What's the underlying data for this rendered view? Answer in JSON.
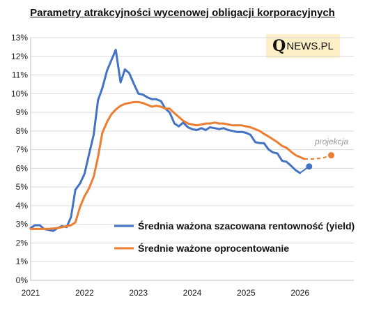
{
  "chart_data": {
    "type": "line",
    "title": "Parametry atrakcyjności wycenowej obligacji korporacyjnych",
    "xlabel": "",
    "ylabel": "",
    "xlim": [
      2021.0,
      2027.0
    ],
    "ylim": [
      0,
      13
    ],
    "y_ticks": [
      "0%",
      "1%",
      "2%",
      "3%",
      "4%",
      "5%",
      "6%",
      "7%",
      "8%",
      "9%",
      "10%",
      "11%",
      "12%",
      "13%"
    ],
    "x_ticks": [
      {
        "value": 2021,
        "label": "2021"
      },
      {
        "value": 2022,
        "label": "2022"
      },
      {
        "value": 2023,
        "label": "2023"
      },
      {
        "value": 2024,
        "label": "2024"
      },
      {
        "value": 2025,
        "label": "2025"
      },
      {
        "value": 2026,
        "label": "2026"
      }
    ],
    "grid": true,
    "legend_position": "lower-right",
    "series": [
      {
        "name": "Średnia ważona szacowana rentowność (yield)",
        "color": "#4472C4",
        "points": [
          [
            2021.0,
            2.8
          ],
          [
            2021.08,
            2.95
          ],
          [
            2021.17,
            2.95
          ],
          [
            2021.25,
            2.75
          ],
          [
            2021.33,
            2.7
          ],
          [
            2021.42,
            2.65
          ],
          [
            2021.5,
            2.8
          ],
          [
            2021.58,
            2.9
          ],
          [
            2021.67,
            2.85
          ],
          [
            2021.75,
            3.4
          ],
          [
            2021.83,
            4.85
          ],
          [
            2021.92,
            5.2
          ],
          [
            2022.0,
            5.7
          ],
          [
            2022.08,
            6.7
          ],
          [
            2022.17,
            7.8
          ],
          [
            2022.25,
            9.65
          ],
          [
            2022.33,
            10.3
          ],
          [
            2022.42,
            11.25
          ],
          [
            2022.5,
            11.8
          ],
          [
            2022.58,
            12.35
          ],
          [
            2022.67,
            10.6
          ],
          [
            2022.75,
            11.3
          ],
          [
            2022.83,
            11.1
          ],
          [
            2022.92,
            10.5
          ],
          [
            2023.0,
            10.0
          ],
          [
            2023.08,
            9.95
          ],
          [
            2023.17,
            9.8
          ],
          [
            2023.25,
            9.7
          ],
          [
            2023.33,
            9.7
          ],
          [
            2023.42,
            9.6
          ],
          [
            2023.5,
            9.2
          ],
          [
            2023.58,
            9.0
          ],
          [
            2023.67,
            8.4
          ],
          [
            2023.75,
            8.25
          ],
          [
            2023.83,
            8.45
          ],
          [
            2023.92,
            8.2
          ],
          [
            2024.0,
            8.1
          ],
          [
            2024.08,
            8.05
          ],
          [
            2024.17,
            8.15
          ],
          [
            2024.25,
            8.05
          ],
          [
            2024.33,
            8.2
          ],
          [
            2024.42,
            8.15
          ],
          [
            2024.5,
            8.1
          ],
          [
            2024.58,
            8.15
          ],
          [
            2024.67,
            8.05
          ],
          [
            2024.75,
            8.0
          ],
          [
            2024.83,
            7.95
          ],
          [
            2024.92,
            7.95
          ],
          [
            2025.0,
            7.9
          ],
          [
            2025.08,
            7.8
          ],
          [
            2025.17,
            7.4
          ],
          [
            2025.25,
            7.35
          ],
          [
            2025.33,
            7.35
          ],
          [
            2025.42,
            7.0
          ],
          [
            2025.5,
            6.85
          ],
          [
            2025.58,
            6.8
          ],
          [
            2025.67,
            6.4
          ],
          [
            2025.75,
            6.35
          ],
          [
            2025.83,
            6.15
          ],
          [
            2025.92,
            5.9
          ],
          [
            2026.0,
            5.75
          ]
        ]
      },
      {
        "name": "Średnie ważone oprocentowanie",
        "color": "#ED7D31",
        "points": [
          [
            2021.0,
            2.75
          ],
          [
            2021.17,
            2.75
          ],
          [
            2021.33,
            2.75
          ],
          [
            2021.5,
            2.8
          ],
          [
            2021.67,
            2.9
          ],
          [
            2021.75,
            2.95
          ],
          [
            2021.83,
            3.1
          ],
          [
            2021.92,
            3.95
          ],
          [
            2022.0,
            4.5
          ],
          [
            2022.08,
            4.9
          ],
          [
            2022.17,
            5.55
          ],
          [
            2022.25,
            6.6
          ],
          [
            2022.33,
            7.9
          ],
          [
            2022.42,
            8.5
          ],
          [
            2022.5,
            8.9
          ],
          [
            2022.58,
            9.15
          ],
          [
            2022.67,
            9.35
          ],
          [
            2022.75,
            9.45
          ],
          [
            2022.83,
            9.5
          ],
          [
            2022.92,
            9.55
          ],
          [
            2023.0,
            9.55
          ],
          [
            2023.08,
            9.5
          ],
          [
            2023.17,
            9.4
          ],
          [
            2023.25,
            9.3
          ],
          [
            2023.33,
            9.35
          ],
          [
            2023.42,
            9.3
          ],
          [
            2023.5,
            9.2
          ],
          [
            2023.58,
            9.2
          ],
          [
            2023.67,
            8.95
          ],
          [
            2023.75,
            8.75
          ],
          [
            2023.83,
            8.55
          ],
          [
            2023.92,
            8.4
          ],
          [
            2024.0,
            8.35
          ],
          [
            2024.08,
            8.3
          ],
          [
            2024.17,
            8.35
          ],
          [
            2024.25,
            8.4
          ],
          [
            2024.33,
            8.4
          ],
          [
            2024.42,
            8.45
          ],
          [
            2024.5,
            8.4
          ],
          [
            2024.58,
            8.4
          ],
          [
            2024.67,
            8.35
          ],
          [
            2024.75,
            8.3
          ],
          [
            2024.83,
            8.3
          ],
          [
            2024.92,
            8.3
          ],
          [
            2025.0,
            8.25
          ],
          [
            2025.08,
            8.2
          ],
          [
            2025.17,
            8.1
          ],
          [
            2025.25,
            8.0
          ],
          [
            2025.33,
            7.85
          ],
          [
            2025.42,
            7.7
          ],
          [
            2025.5,
            7.55
          ],
          [
            2025.58,
            7.4
          ],
          [
            2025.67,
            7.2
          ],
          [
            2025.75,
            7.1
          ],
          [
            2025.83,
            6.9
          ],
          [
            2025.92,
            6.7
          ],
          [
            2026.0,
            6.6
          ],
          [
            2026.08,
            6.5
          ]
        ]
      }
    ],
    "projections": [
      {
        "series": 0,
        "color": "#4472C4",
        "dashed": false,
        "points": [
          [
            2026.0,
            5.75
          ],
          [
            2026.17,
            6.1
          ]
        ],
        "marker": [
          2026.17,
          6.1
        ]
      },
      {
        "series": 1,
        "color": "#ED7D31",
        "dashed": true,
        "points": [
          [
            2026.08,
            6.5
          ],
          [
            2026.25,
            6.5
          ],
          [
            2026.42,
            6.55
          ],
          [
            2026.58,
            6.7
          ]
        ],
        "marker": [
          2026.58,
          6.7
        ]
      }
    ],
    "annotation": "projekcja"
  },
  "logo": {
    "q": "Q",
    "rest": "NEWS.PL"
  }
}
